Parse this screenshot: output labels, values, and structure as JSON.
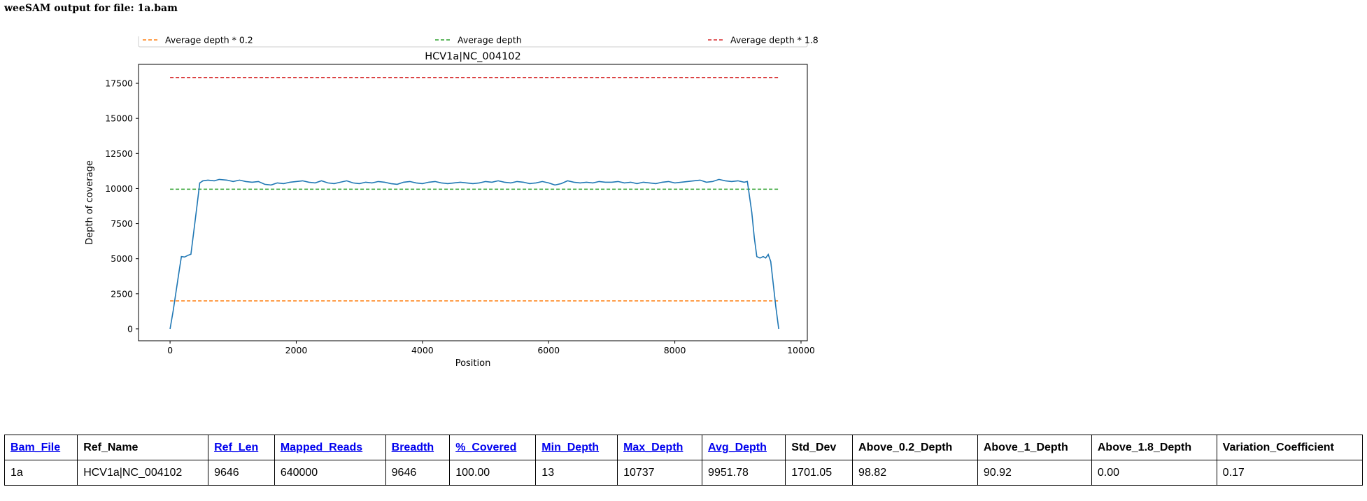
{
  "page": {
    "title": "weeSAM output for file: 1a.bam"
  },
  "colors": {
    "coverage": "#1f77b4",
    "low": "#ff7f0e",
    "avg": "#2ca02c",
    "high": "#d62728"
  },
  "chart_data": {
    "type": "line",
    "title": "HCV1a|NC_004102",
    "xlabel": "Position",
    "ylabel": "Depth of coverage",
    "xlim": [
      -500,
      10100
    ],
    "ylim": [
      -850,
      18850
    ],
    "xticks": [
      0,
      2000,
      4000,
      6000,
      8000,
      10000
    ],
    "yticks": [
      0,
      2500,
      5000,
      7500,
      10000,
      12500,
      15000,
      17500
    ],
    "legend_position": "top",
    "grid": false,
    "series": [
      {
        "name": "",
        "points": [
          [
            0,
            0
          ],
          [
            50,
            1300
          ],
          [
            100,
            2800
          ],
          [
            150,
            4300
          ],
          [
            180,
            5150
          ],
          [
            230,
            5120
          ],
          [
            290,
            5250
          ],
          [
            330,
            5320
          ],
          [
            380,
            7100
          ],
          [
            430,
            8900
          ],
          [
            470,
            10400
          ],
          [
            520,
            10550
          ],
          [
            600,
            10600
          ],
          [
            700,
            10550
          ],
          [
            780,
            10650
          ],
          [
            900,
            10600
          ],
          [
            1000,
            10500
          ],
          [
            1100,
            10600
          ],
          [
            1200,
            10500
          ],
          [
            1300,
            10450
          ],
          [
            1400,
            10500
          ],
          [
            1500,
            10300
          ],
          [
            1600,
            10250
          ],
          [
            1700,
            10400
          ],
          [
            1800,
            10350
          ],
          [
            1900,
            10450
          ],
          [
            2000,
            10500
          ],
          [
            2100,
            10550
          ],
          [
            2200,
            10450
          ],
          [
            2300,
            10400
          ],
          [
            2400,
            10550
          ],
          [
            2500,
            10400
          ],
          [
            2600,
            10350
          ],
          [
            2700,
            10450
          ],
          [
            2800,
            10550
          ],
          [
            2900,
            10400
          ],
          [
            3000,
            10350
          ],
          [
            3100,
            10450
          ],
          [
            3200,
            10400
          ],
          [
            3300,
            10500
          ],
          [
            3400,
            10450
          ],
          [
            3500,
            10350
          ],
          [
            3600,
            10300
          ],
          [
            3700,
            10450
          ],
          [
            3800,
            10500
          ],
          [
            3900,
            10400
          ],
          [
            4000,
            10350
          ],
          [
            4100,
            10450
          ],
          [
            4200,
            10500
          ],
          [
            4300,
            10400
          ],
          [
            4400,
            10350
          ],
          [
            4500,
            10400
          ],
          [
            4600,
            10450
          ],
          [
            4700,
            10400
          ],
          [
            4800,
            10350
          ],
          [
            4900,
            10400
          ],
          [
            5000,
            10500
          ],
          [
            5100,
            10450
          ],
          [
            5200,
            10550
          ],
          [
            5300,
            10450
          ],
          [
            5400,
            10400
          ],
          [
            5500,
            10500
          ],
          [
            5600,
            10450
          ],
          [
            5700,
            10350
          ],
          [
            5800,
            10400
          ],
          [
            5900,
            10500
          ],
          [
            6000,
            10400
          ],
          [
            6100,
            10250
          ],
          [
            6200,
            10350
          ],
          [
            6300,
            10550
          ],
          [
            6400,
            10450
          ],
          [
            6500,
            10400
          ],
          [
            6600,
            10450
          ],
          [
            6700,
            10400
          ],
          [
            6800,
            10500
          ],
          [
            6900,
            10450
          ],
          [
            7000,
            10450
          ],
          [
            7100,
            10500
          ],
          [
            7200,
            10400
          ],
          [
            7300,
            10450
          ],
          [
            7400,
            10350
          ],
          [
            7500,
            10450
          ],
          [
            7600,
            10400
          ],
          [
            7700,
            10350
          ],
          [
            7800,
            10450
          ],
          [
            7900,
            10500
          ],
          [
            8000,
            10400
          ],
          [
            8100,
            10450
          ],
          [
            8200,
            10500
          ],
          [
            8300,
            10550
          ],
          [
            8400,
            10600
          ],
          [
            8500,
            10450
          ],
          [
            8600,
            10500
          ],
          [
            8700,
            10650
          ],
          [
            8800,
            10550
          ],
          [
            8900,
            10500
          ],
          [
            9000,
            10550
          ],
          [
            9100,
            10450
          ],
          [
            9150,
            10500
          ],
          [
            9220,
            8300
          ],
          [
            9260,
            6500
          ],
          [
            9300,
            5150
          ],
          [
            9350,
            5050
          ],
          [
            9400,
            5150
          ],
          [
            9440,
            5050
          ],
          [
            9480,
            5300
          ],
          [
            9520,
            4800
          ],
          [
            9560,
            3200
          ],
          [
            9600,
            1600
          ],
          [
            9646,
            0
          ]
        ]
      }
    ],
    "reference_lines": [
      {
        "name": "Average depth * 0.2",
        "y": 1990,
        "color": "#ff7f0e"
      },
      {
        "name": "Average depth",
        "y": 9951.78,
        "color": "#2ca02c"
      },
      {
        "name": "Average depth * 1.8",
        "y": 17913,
        "color": "#d62728"
      }
    ]
  },
  "table": {
    "headers": [
      {
        "label": "Bam_File",
        "link": true
      },
      {
        "label": "Ref_Name",
        "link": false
      },
      {
        "label": "Ref_Len",
        "link": true
      },
      {
        "label": "Mapped_Reads",
        "link": true
      },
      {
        "label": "Breadth",
        "link": true
      },
      {
        "label": "%_Covered",
        "link": true
      },
      {
        "label": "Min_Depth",
        "link": true
      },
      {
        "label": "Max_Depth",
        "link": true
      },
      {
        "label": "Avg_Depth",
        "link": true
      },
      {
        "label": "Std_Dev",
        "link": false
      },
      {
        "label": "Above_0.2_Depth",
        "link": false
      },
      {
        "label": "Above_1_Depth",
        "link": false
      },
      {
        "label": "Above_1.8_Depth",
        "link": false
      },
      {
        "label": "Variation_Coefficient",
        "link": false
      }
    ],
    "rows": [
      [
        "1a",
        "HCV1a|NC_004102",
        "9646",
        "640000",
        "9646",
        "100.00",
        "13",
        "10737",
        "9951.78",
        "1701.05",
        "98.82",
        "90.92",
        "0.00",
        "0.17"
      ]
    ]
  }
}
